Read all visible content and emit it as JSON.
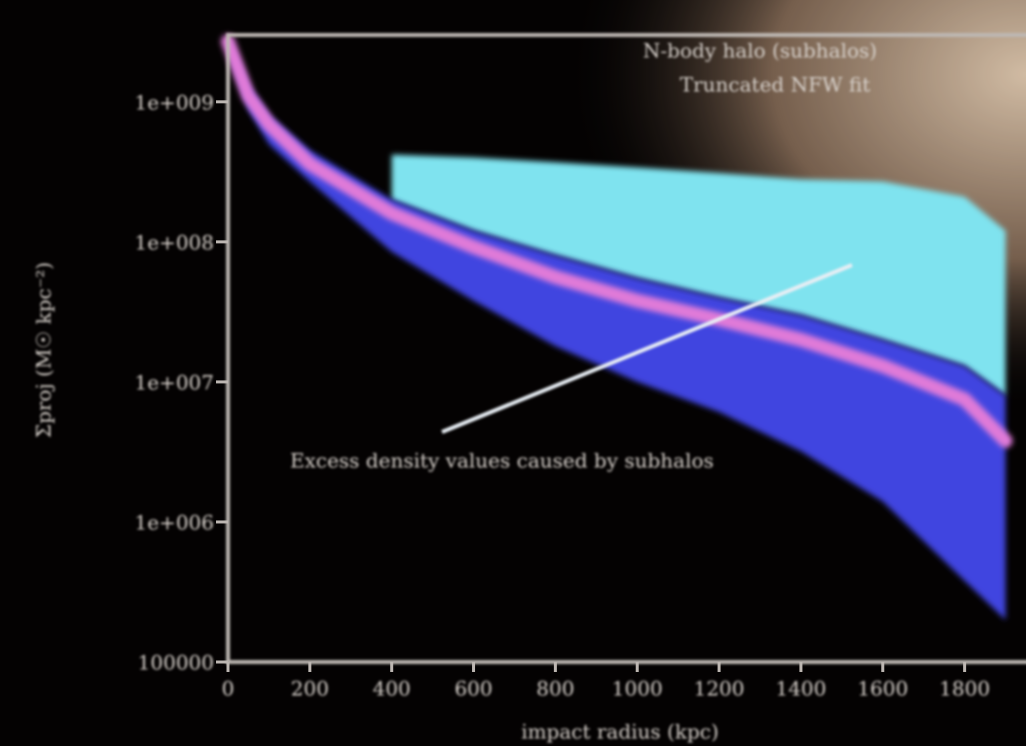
{
  "chart_data": {
    "type": "band-line",
    "title": "N-body halo (subhalos)",
    "subtitle": "Truncated NFW fit",
    "annotation": "Excess density values caused by subhalos",
    "xlabel": "impact radius (kpc)",
    "ylabel": "Σproj (M☉ kpc⁻²)",
    "ylog": true,
    "xlim": [
      0,
      1950
    ],
    "ylim": [
      100000,
      3000000000
    ],
    "xticks": [
      0,
      200,
      400,
      600,
      800,
      1000,
      1200,
      1400,
      1600,
      1800
    ],
    "yticks": [
      {
        "value": 1000000000,
        "label": "1e+009"
      },
      {
        "value": 100000000,
        "label": "1e+008"
      },
      {
        "value": 10000000,
        "label": "1e+007"
      },
      {
        "value": 1000000,
        "label": "1e+006"
      },
      100000
    ],
    "x": [
      0,
      50,
      100,
      200,
      400,
      600,
      800,
      1000,
      1200,
      1400,
      1600,
      1800,
      1900
    ],
    "series": [
      {
        "color": "#3f45e0",
        "peak_color": "#7fe3ef",
        "lower": [
          2500000000,
          880000000,
          500000000,
          270000000,
          85000000,
          38000000,
          18000000,
          10000000,
          6100000,
          3200000,
          1400000,
          380000,
          200000
        ],
        "upper": [
          2800000000,
          1300000000,
          800000000,
          450000000,
          200000000,
          120000000,
          80000000,
          55000000,
          40000000,
          30000000,
          20000000,
          13000000,
          8000000
        ],
        "peak": [
          null,
          null,
          null,
          null,
          420000000,
          400000000,
          370000000,
          340000000,
          310000000,
          280000000,
          270000000,
          210000000,
          120000000
        ]
      },
      {
        "color": "#e07ad8",
        "values": [
          2700000000,
          1100000000,
          690000000,
          360000000,
          160000000,
          92000000,
          56000000,
          38000000,
          28000000,
          20000000,
          13000000,
          7500000,
          3800000
        ]
      }
    ]
  }
}
